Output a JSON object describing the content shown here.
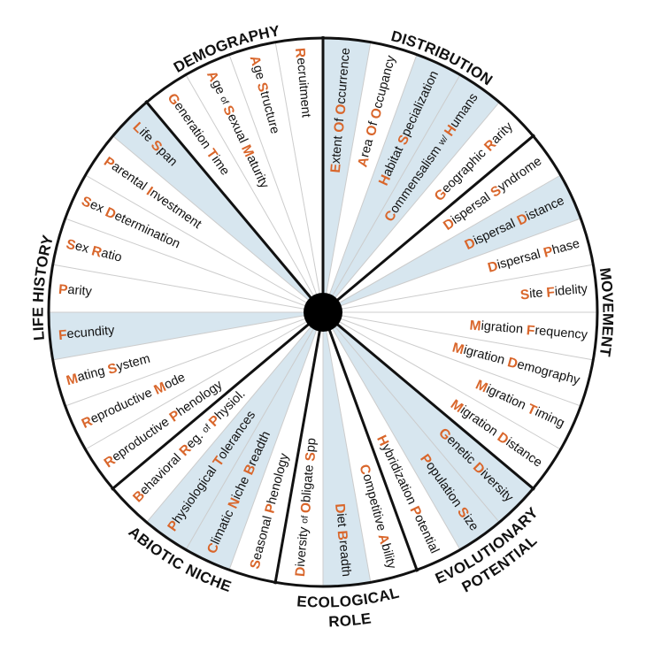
{
  "colors": {
    "highlight": "#d7e6ef",
    "accent": "#d9662b",
    "line": "#111111",
    "divider": "#cccccc",
    "hub": "#000000"
  },
  "categories": [
    {
      "id": "distribution",
      "lines": [
        "DISTRIBUTION"
      ]
    },
    {
      "id": "movement",
      "lines": [
        "MOVEMENT"
      ]
    },
    {
      "id": "evolutionary-potential",
      "lines": [
        "EVOLUTIONARY",
        "POTENTIAL"
      ]
    },
    {
      "id": "ecological-role",
      "lines": [
        "ECOLOGICAL",
        "ROLE"
      ]
    },
    {
      "id": "abiotic-niche",
      "lines": [
        "ABIOTIC  NICHE"
      ]
    },
    {
      "id": "life-history",
      "lines": [
        "LIFE HISTORY"
      ]
    },
    {
      "id": "demography",
      "lines": [
        "DEMOGRAPHY"
      ]
    }
  ],
  "traits": [
    {
      "text": "Extent Of Occurrence",
      "highlight": true,
      "category": "distribution"
    },
    {
      "text": "Area Of Occupancy",
      "highlight": false,
      "category": "distribution"
    },
    {
      "text": "Habitat Specialization",
      "highlight": true,
      "category": "distribution"
    },
    {
      "text": "Commensalism w/ Humans",
      "highlight": true,
      "category": "distribution"
    },
    {
      "text": "Geographic Rarity",
      "highlight": false,
      "category": "distribution"
    },
    {
      "text": "Dispersal Syndrome",
      "highlight": false,
      "category": "movement"
    },
    {
      "text": "Dispersal Distance",
      "highlight": true,
      "category": "movement"
    },
    {
      "text": "Dispersal Phase",
      "highlight": false,
      "category": "movement"
    },
    {
      "text": "Site Fidelity",
      "highlight": false,
      "category": "movement"
    },
    {
      "text": "Migration Frequency",
      "highlight": false,
      "category": "movement"
    },
    {
      "text": "Migration Demography",
      "highlight": false,
      "category": "movement"
    },
    {
      "text": "Migration Timing",
      "highlight": false,
      "category": "movement"
    },
    {
      "text": "Migration Distance",
      "highlight": false,
      "category": "movement"
    },
    {
      "text": "Genetic Diversity",
      "highlight": true,
      "category": "evolutionary-potential"
    },
    {
      "text": "Population Size",
      "highlight": true,
      "category": "evolutionary-potential"
    },
    {
      "text": "Hybridization Potential",
      "highlight": false,
      "category": "evolutionary-potential"
    },
    {
      "text": "Competitive Ability",
      "highlight": false,
      "category": "ecological-role"
    },
    {
      "text": "Diet Breadth",
      "highlight": true,
      "category": "ecological-role"
    },
    {
      "text": "Diversity of Obligate Spp",
      "highlight": false,
      "category": "ecological-role"
    },
    {
      "text": "Seasonal Phenology",
      "highlight": false,
      "category": "abiotic-niche"
    },
    {
      "text": "Climatic Niche Breadth",
      "highlight": true,
      "category": "abiotic-niche"
    },
    {
      "text": "Physiological Tolerances",
      "highlight": true,
      "category": "abiotic-niche"
    },
    {
      "text": "Behavioral Reg. of Physiol.",
      "highlight": false,
      "category": "abiotic-niche"
    },
    {
      "text": "Reproductive Phenology",
      "highlight": false,
      "category": "life-history"
    },
    {
      "text": "Reproductive Mode",
      "highlight": false,
      "category": "life-history"
    },
    {
      "text": "Mating System",
      "highlight": false,
      "category": "life-history"
    },
    {
      "text": "Fecundity",
      "highlight": true,
      "category": "life-history"
    },
    {
      "text": "Parity",
      "highlight": false,
      "category": "life-history"
    },
    {
      "text": "Sex Ratio",
      "highlight": false,
      "category": "life-history"
    },
    {
      "text": "Sex Determination",
      "highlight": false,
      "category": "life-history"
    },
    {
      "text": "Parental Investment",
      "highlight": false,
      "category": "life-history"
    },
    {
      "text": "Life Span",
      "highlight": true,
      "category": "life-history"
    },
    {
      "text": "Generation Time",
      "highlight": false,
      "category": "demography"
    },
    {
      "text": "Age of Sexual Maturity",
      "highlight": false,
      "category": "demography"
    },
    {
      "text": "Age Structure",
      "highlight": false,
      "category": "demography"
    },
    {
      "text": "Recruitment",
      "highlight": false,
      "category": "demography"
    }
  ]
}
